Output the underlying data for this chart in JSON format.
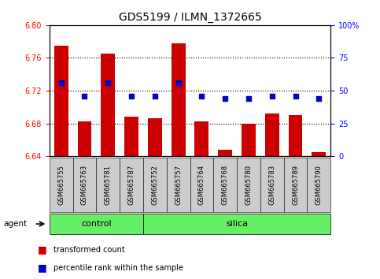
{
  "title": "GDS5199 / ILMN_1372665",
  "samples": [
    "GSM665755",
    "GSM665763",
    "GSM665781",
    "GSM665787",
    "GSM665752",
    "GSM665757",
    "GSM665764",
    "GSM665768",
    "GSM665780",
    "GSM665783",
    "GSM665789",
    "GSM665790"
  ],
  "bar_values": [
    6.775,
    6.683,
    6.765,
    6.688,
    6.686,
    6.778,
    6.683,
    6.648,
    6.68,
    6.692,
    6.69,
    6.645
  ],
  "percentile_values": [
    56,
    46,
    56,
    46,
    46,
    56,
    46,
    44,
    44,
    46,
    46,
    44
  ],
  "ylim_left": [
    6.64,
    6.8
  ],
  "ylim_right": [
    0,
    100
  ],
  "yticks_left": [
    6.64,
    6.68,
    6.72,
    6.76,
    6.8
  ],
  "yticks_right": [
    0,
    25,
    50,
    75,
    100
  ],
  "ytick_labels_right": [
    "0",
    "25",
    "50",
    "75",
    "100%"
  ],
  "hlines": [
    6.68,
    6.72,
    6.76
  ],
  "bar_color": "#cc0000",
  "dot_color": "#0000cc",
  "bar_width": 0.6,
  "bar_bottom": 6.64,
  "n_control": 4,
  "n_silica": 8,
  "control_color": "#66ee66",
  "silica_color": "#66ee66",
  "agent_label": "agent",
  "control_label": "control",
  "silica_label": "silica",
  "legend_bar_label": "transformed count",
  "legend_dot_label": "percentile rank within the sample",
  "background_color": "#ffffff",
  "tick_area_color": "#cccccc"
}
